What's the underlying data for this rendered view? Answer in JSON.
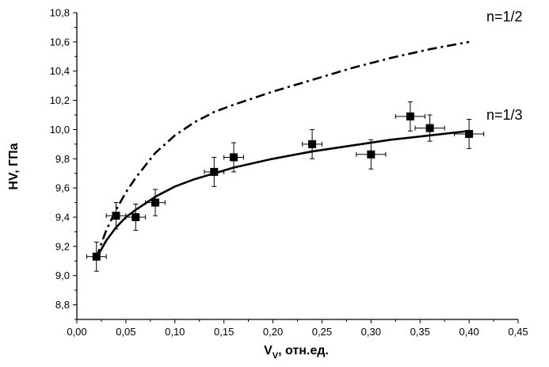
{
  "chart_data": {
    "type": "scatter",
    "xlabel": "V",
    "xlabel_subscript": "V",
    "xlabel_suffix": ", отн.ед.",
    "ylabel": "HV, ГПа",
    "xlim": [
      0.0,
      0.45
    ],
    "ylim": [
      8.7,
      10.8
    ],
    "xticks": [
      0.0,
      0.05,
      0.1,
      0.15,
      0.2,
      0.25,
      0.3,
      0.35,
      0.4,
      0.45
    ],
    "xtick_labels": [
      "0,00",
      "0,05",
      "0,10",
      "0,15",
      "0,20",
      "0,25",
      "0,30",
      "0,35",
      "0,40",
      "0,45"
    ],
    "yticks": [
      8.8,
      9.0,
      9.2,
      9.4,
      9.6,
      9.8,
      10.0,
      10.2,
      10.4,
      10.6,
      10.8
    ],
    "ytick_labels": [
      "8,8",
      "9,0",
      "9,2",
      "9,4",
      "9,6",
      "9,8",
      "10,0",
      "10,2",
      "10,4",
      "10,6",
      "10,8"
    ],
    "grid": false,
    "points": [
      {
        "x": 0.02,
        "y": 9.13,
        "xerr": 0.01,
        "yerr": 0.1
      },
      {
        "x": 0.04,
        "y": 9.41,
        "xerr": 0.01,
        "yerr": 0.09
      },
      {
        "x": 0.06,
        "y": 9.4,
        "xerr": 0.01,
        "yerr": 0.09
      },
      {
        "x": 0.08,
        "y": 9.5,
        "xerr": 0.01,
        "yerr": 0.09
      },
      {
        "x": 0.14,
        "y": 9.71,
        "xerr": 0.01,
        "yerr": 0.1
      },
      {
        "x": 0.16,
        "y": 9.81,
        "xerr": 0.01,
        "yerr": 0.1
      },
      {
        "x": 0.24,
        "y": 9.9,
        "xerr": 0.01,
        "yerr": 0.1
      },
      {
        "x": 0.3,
        "y": 9.83,
        "xerr": 0.015,
        "yerr": 0.1
      },
      {
        "x": 0.34,
        "y": 10.09,
        "xerr": 0.015,
        "yerr": 0.1
      },
      {
        "x": 0.36,
        "y": 10.01,
        "xerr": 0.015,
        "yerr": 0.09
      },
      {
        "x": 0.4,
        "y": 9.97,
        "xerr": 0.015,
        "yerr": 0.1
      }
    ],
    "curves": [
      {
        "label": "n=1/3",
        "style": "solid",
        "x": [
          0.02,
          0.025,
          0.03,
          0.04,
          0.05,
          0.06,
          0.08,
          0.1,
          0.12,
          0.14,
          0.16,
          0.2,
          0.24,
          0.28,
          0.32,
          0.36,
          0.4
        ],
        "y": [
          9.12,
          9.18,
          9.24,
          9.33,
          9.4,
          9.45,
          9.54,
          9.61,
          9.66,
          9.7,
          9.74,
          9.8,
          9.85,
          9.89,
          9.93,
          9.96,
          9.99
        ]
      },
      {
        "label": "n=1/2",
        "style": "dashdot",
        "x": [
          0.02,
          0.025,
          0.03,
          0.04,
          0.05,
          0.06,
          0.08,
          0.1,
          0.12,
          0.14,
          0.16,
          0.2,
          0.24,
          0.28,
          0.32,
          0.36,
          0.4
        ],
        "y": [
          9.12,
          9.22,
          9.31,
          9.45,
          9.57,
          9.67,
          9.84,
          9.96,
          10.05,
          10.12,
          10.17,
          10.26,
          10.34,
          10.42,
          10.49,
          10.55,
          10.6
        ]
      }
    ],
    "annotations": [
      "n=1/2",
      "n=1/3"
    ]
  }
}
